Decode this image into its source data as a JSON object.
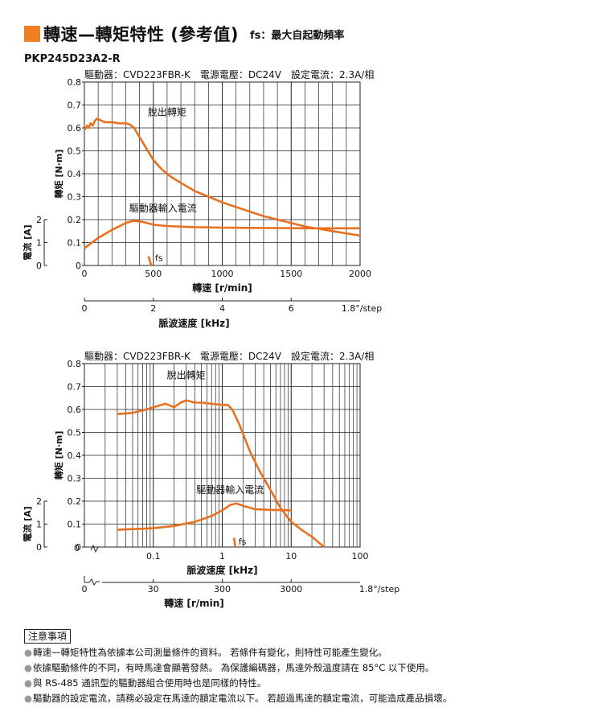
{
  "header": {
    "title": "轉速—轉矩特性 (參考值)",
    "subtitle": "fs：最大自起動頻率"
  },
  "model": "PKP245D23A2-R",
  "colors": {
    "accent": "#f07f23",
    "curve": "#e8701e",
    "grid": "#222222"
  },
  "chart_data": [
    {
      "type": "line",
      "scale": "linear",
      "caption": "驅動器：CVD223FBR-K　電源電壓：DC24V　設定電流：2.3A/相",
      "xlabel": "轉速 [r/min]",
      "xlim": [
        0,
        2000
      ],
      "xticks": [
        "0",
        "500",
        "1000",
        "1500",
        "2000"
      ],
      "ylabel_torque": "轉矩 [N·m]",
      "ylim_torque": [
        0,
        0.8
      ],
      "torque_ticks": [
        "0",
        "0.1",
        "0.2",
        "0.3",
        "0.4",
        "0.5",
        "0.6",
        "0.7",
        "0.8"
      ],
      "ylabel_current": "電流 [A]",
      "current_ticks": [
        "0",
        "1",
        "2"
      ],
      "secondary_xlabel": "脈波速度 [kHz]",
      "secondary_xlim": [
        0,
        8
      ],
      "secondary_ticks": [
        "0",
        "2",
        "4",
        "6"
      ],
      "step_label": "1.8°/step",
      "fs_label": "fs",
      "series": [
        {
          "name": "脫出轉矩",
          "x": [
            0,
            10,
            20,
            30,
            45,
            60,
            75,
            90,
            110,
            130,
            150,
            200,
            250,
            300,
            330,
            360,
            400,
            450,
            500,
            560,
            620,
            700,
            800,
            900,
            1000,
            1100,
            1200,
            1300,
            1400,
            1500,
            1600,
            1700,
            1800,
            1900,
            2000
          ],
          "y": [
            0.59,
            0.6,
            0.61,
            0.6,
            0.62,
            0.61,
            0.63,
            0.64,
            0.635,
            0.63,
            0.625,
            0.625,
            0.62,
            0.62,
            0.615,
            0.6,
            0.56,
            0.51,
            0.46,
            0.42,
            0.39,
            0.36,
            0.325,
            0.3,
            0.275,
            0.255,
            0.235,
            0.215,
            0.2,
            0.185,
            0.17,
            0.16,
            0.15,
            0.14,
            0.13
          ]
        },
        {
          "name": "驅動器輸入電流",
          "x": [
            0,
            100,
            200,
            300,
            360,
            420,
            500,
            600,
            800,
            1000,
            1200,
            1400,
            1600,
            1800,
            2000
          ],
          "y": [
            0.075,
            0.12,
            0.155,
            0.185,
            0.195,
            0.19,
            0.178,
            0.172,
            0.167,
            0.165,
            0.164,
            0.163,
            0.162,
            0.162,
            0.162
          ]
        },
        {
          "name": "fs",
          "x": [
            465,
            485
          ],
          "y": [
            0.04,
            0
          ]
        }
      ]
    },
    {
      "type": "line",
      "scale": "log",
      "caption": "驅動器：CVD223FBR-K　電源電壓：DC24V　設定電流：2.3A/相",
      "xlabel": "脈波速度 [kHz]",
      "xlim": [
        0.01,
        100
      ],
      "xticks": [
        "0.1",
        "1",
        "10",
        "100"
      ],
      "ylabel_torque": "轉矩 [N·m]",
      "ylim_torque": [
        0,
        0.8
      ],
      "torque_ticks": [
        "0",
        "0.1",
        "0.2",
        "0.3",
        "0.4",
        "0.5",
        "0.6",
        "0.7",
        "0.8"
      ],
      "ylabel_current": "電流 [A]",
      "current_ticks": [
        "0",
        "1",
        "2"
      ],
      "secondary_xlabel": "轉速 [r/min]",
      "secondary_ticks": [
        "0",
        "30",
        "300",
        "3000"
      ],
      "step_label": "1.8°/step",
      "fs_label": "fs",
      "series": [
        {
          "name": "脫出轉矩",
          "x": [
            0.03,
            0.05,
            0.08,
            0.1,
            0.15,
            0.2,
            0.25,
            0.3,
            0.4,
            0.5,
            0.7,
            1.0,
            1.2,
            1.4,
            1.8,
            2.5,
            3.5,
            5,
            7,
            10,
            15,
            20,
            30
          ],
          "y": [
            0.58,
            0.585,
            0.6,
            0.61,
            0.625,
            0.61,
            0.63,
            0.64,
            0.63,
            0.63,
            0.625,
            0.62,
            0.62,
            0.6,
            0.53,
            0.42,
            0.33,
            0.25,
            0.17,
            0.11,
            0.07,
            0.045,
            0.0
          ]
        },
        {
          "name": "驅動器輸入電流",
          "x": [
            0.03,
            0.1,
            0.2,
            0.4,
            0.7,
            1.0,
            1.3,
            1.6,
            2.0,
            3.0,
            5,
            10
          ],
          "y": [
            0.075,
            0.082,
            0.092,
            0.11,
            0.135,
            0.16,
            0.183,
            0.19,
            0.18,
            0.165,
            0.162,
            0.16
          ]
        },
        {
          "name": "fs",
          "x": [
            1.48,
            1.55
          ],
          "y": [
            0.04,
            0
          ]
        }
      ]
    }
  ],
  "notes": {
    "heading": "注意事項",
    "items": [
      "轉速—轉矩特性為依據本公司測量條件的資料。 若條件有變化，則特性可能產生變化。",
      "依據驅動條件的不同，有時馬達會顯著發熱。 為保護編碼器，馬達外殼溫度請在 85°C 以下使用。",
      "與 RS-485 通訊型的驅動器組合使用時也是同樣的特性。",
      "驅動器的設定電流，請務必設定在馬達的額定電流以下。 若超過馬達的額定電流，可能造成產品損壞。"
    ],
    "bullet": "●"
  }
}
